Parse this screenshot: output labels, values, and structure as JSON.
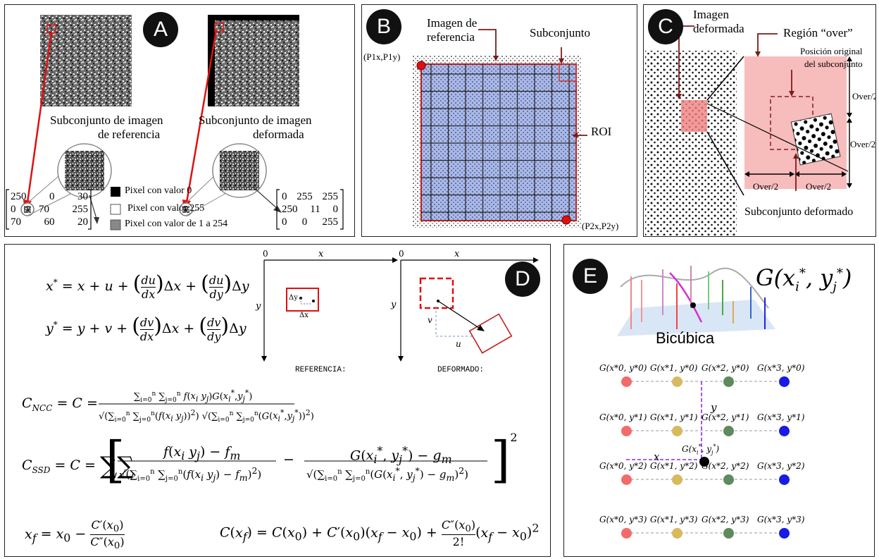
{
  "panel_a": {
    "badge": "A",
    "ref_caption_1": "Subconjunto de imagen",
    "ref_caption_2": "de referencia",
    "def_caption_1": "Subconjunto de imagen",
    "def_caption_2": "deformada",
    "matrix_ref": [
      [
        "250",
        "0",
        "30"
      ],
      [
        "0",
        "70",
        "255"
      ],
      [
        "70",
        "60",
        "20"
      ]
    ],
    "matrix_def": [
      [
        "0",
        "255",
        "255"
      ],
      [
        "250",
        "11",
        "0"
      ],
      [
        "0",
        "0",
        "255"
      ]
    ],
    "legend": [
      "Pixel con valor 0",
      "Pixel con valor 255",
      "Pixel con valor de 1 a 254"
    ]
  },
  "panel_b": {
    "badge": "B",
    "label_ref_1": "Imagen de",
    "label_ref_2": "referencia",
    "label_subset": "Subconjunto",
    "label_roi": "ROI",
    "label_p1": "(P1x,P1y)",
    "label_p2": "(P2x,P2y)"
  },
  "panel_c": {
    "badge": "C",
    "label_img_1": "Imagen",
    "label_img_2": "deformada",
    "label_region": "Región “over”",
    "label_pos_1": "Posición original",
    "label_pos_2": "del subconjunto",
    "over_half": "Over/2",
    "label_def_subset": "Subconjunto deformado"
  },
  "panel_d": {
    "badge": "D",
    "ref_label": "REFERENCIA:",
    "def_label": "DEFORMADO:",
    "axis_x": "x",
    "axis_y": "y",
    "origin": "0",
    "dy": "Δy",
    "dx": "Δx",
    "v": "v",
    "u": "u"
  },
  "panel_e": {
    "badge": "E",
    "title_label": "Bicúbica",
    "big_formula": "G(x*i, y*j)",
    "axis_x": "x",
    "axis_y": "y",
    "target_label": "G(x*i, y*j)",
    "node_colors": [
      "#f26b6b",
      "#d7b95f",
      "#5e8a5e",
      "#1a1ae6"
    ],
    "rows": [
      [
        "G(x*0, y*0)",
        "G(x*1, y*0)",
        "G(x*2, y*0)",
        "G(x*3, y*0)"
      ],
      [
        "G(x*0, y*1)",
        "G(x*1, y*1)",
        "G(x*2, y*1)",
        "G(x*3, y*1)"
      ],
      [
        "G(x*0, y*2)",
        "G(x*1, y*2)",
        "G(x*2, y*2)",
        "G(x*3, y*2)"
      ],
      [
        "G(x*0, y*3)",
        "G(x*1, y*3)",
        "G(x*2, y*3)",
        "G(x*3, y*3)"
      ]
    ]
  }
}
